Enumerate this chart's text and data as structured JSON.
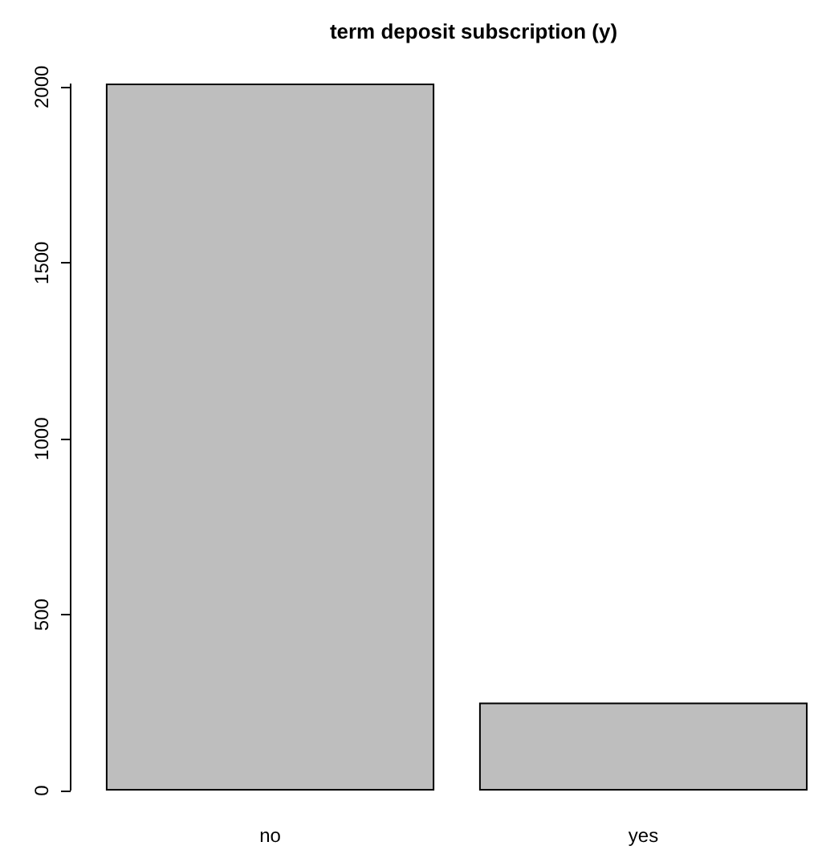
{
  "chart_data": {
    "type": "bar",
    "title": "term deposit subscription (y)",
    "categories": [
      "no",
      "yes"
    ],
    "values": [
      2010,
      250
    ],
    "color": "#bebebe",
    "ylim": [
      0,
      2010
    ],
    "yticks": [
      0,
      500,
      1000,
      1500,
      2000
    ],
    "grid": false
  }
}
